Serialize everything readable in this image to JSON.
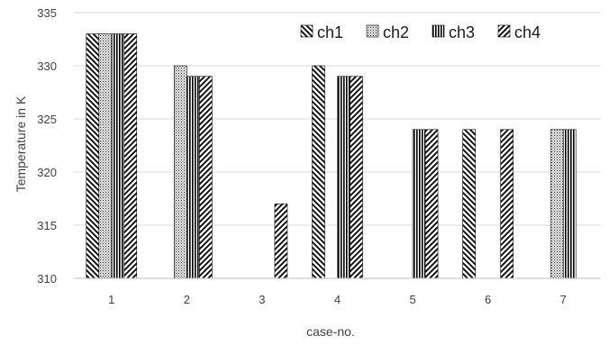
{
  "chart_data": {
    "type": "bar",
    "title": "",
    "xlabel": "case-no.",
    "ylabel": "Temperature in K",
    "ylim": [
      310,
      335
    ],
    "yticks": [
      310,
      315,
      320,
      325,
      330,
      335
    ],
    "categories": [
      "1",
      "2",
      "3",
      "4",
      "5",
      "6",
      "7"
    ],
    "series": [
      {
        "name": "ch1",
        "pattern": "diag-down",
        "values": [
          333,
          310,
          310,
          330,
          310,
          324,
          310
        ]
      },
      {
        "name": "ch2",
        "pattern": "dots",
        "values": [
          333,
          330,
          310,
          310,
          310,
          310,
          324
        ]
      },
      {
        "name": "ch3",
        "pattern": "vertical",
        "values": [
          333,
          329,
          310,
          329,
          324,
          310,
          324
        ]
      },
      {
        "name": "ch4",
        "pattern": "diag-up",
        "values": [
          333,
          329,
          317,
          329,
          324,
          324,
          310
        ]
      }
    ],
    "grid": true,
    "legend_position": "top-right",
    "colors": {
      "bar_stroke": "#000000",
      "grid": "#d9d9d9",
      "text": "#404040"
    }
  }
}
